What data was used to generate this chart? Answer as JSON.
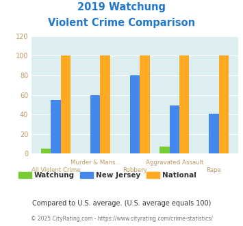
{
  "title_line1": "2019 Watchung",
  "title_line2": "Violent Crime Comparison",
  "categories": [
    "All Violent Crime",
    "Murder & Mans...",
    "Robbery",
    "Aggravated Assault",
    "Rape"
  ],
  "watchung": [
    5,
    0,
    0,
    7,
    0
  ],
  "new_jersey": [
    55,
    60,
    80,
    49,
    41
  ],
  "national": [
    100,
    100,
    100,
    100,
    100
  ],
  "color_watchung": "#77cc33",
  "color_nj": "#4488ee",
  "color_national": "#ffaa22",
  "bg_color": "#ddeef0",
  "ylim": [
    0,
    120
  ],
  "yticks": [
    0,
    20,
    40,
    60,
    80,
    100,
    120
  ],
  "footnote1": "Compared to U.S. average. (U.S. average equals 100)",
  "footnote2": "© 2025 CityRating.com - https://www.cityrating.com/crime-statistics/",
  "legend_labels": [
    "Watchung",
    "New Jersey",
    "National"
  ],
  "title_color": "#2277cc",
  "xlabel_color": "#bb9966",
  "ytick_color": "#bb9966",
  "footnote1_color": "#333333",
  "footnote2_color": "#4488cc"
}
